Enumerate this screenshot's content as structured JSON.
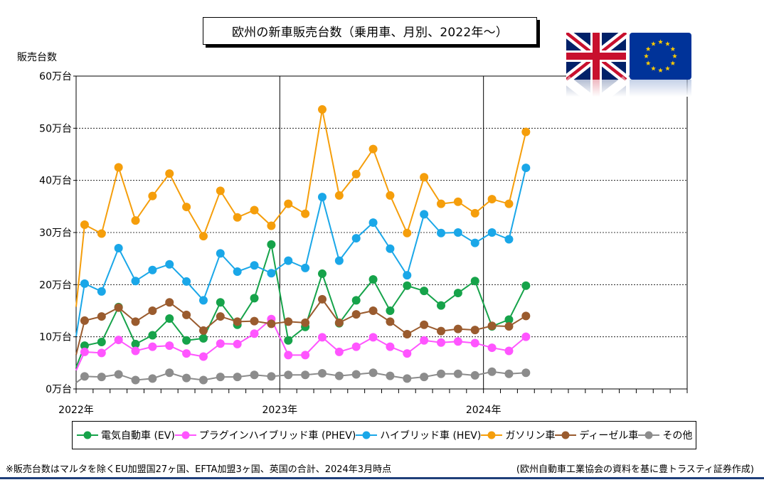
{
  "title": "欧州の新車販売台数（乗用車、月別、2022年～）",
  "ylabel": "販売台数",
  "footnote": "※販売台数はマルタを除くEU加盟国27ヶ国、EFTA加盟3ヶ国、英国の合計、2024年3月時点",
  "source": "(欧州自動車工業協会の資料を基に豊トラスティ証券作成)",
  "flags": [
    {
      "name": "uk-flag"
    },
    {
      "name": "eu-flag"
    }
  ],
  "chart_data": {
    "type": "line",
    "title": "欧州の新車販売台数（乗用車、月別、2022年～）",
    "ylabel": "販売台数",
    "xlabel": "",
    "ylim": [
      0,
      60
    ],
    "y_unit": "万台",
    "yticks": [
      "0万台",
      "10万台",
      "20万台",
      "30万台",
      "40万台",
      "50万台",
      "60万台"
    ],
    "xticks": [
      "2022年",
      "2023年",
      "2024年"
    ],
    "x": [
      "2022-01",
      "2022-02",
      "2022-03",
      "2022-04",
      "2022-05",
      "2022-06",
      "2022-07",
      "2022-08",
      "2022-09",
      "2022-10",
      "2022-11",
      "2022-12",
      "2023-01",
      "2023-02",
      "2023-03",
      "2023-04",
      "2023-05",
      "2023-06",
      "2023-07",
      "2023-08",
      "2023-09",
      "2023-10",
      "2023-11",
      "2023-12",
      "2024-01",
      "2024-02",
      "2024-03"
    ],
    "grid": true,
    "legend_position": "bottom",
    "series": [
      {
        "name": "電気自動車 (EV)",
        "color": "#16a34a",
        "values": [
          8.3,
          9.0,
          15.7,
          8.6,
          10.3,
          13.5,
          9.3,
          9.7,
          16.6,
          12.3,
          17.4,
          27.7,
          9.3,
          11.9,
          22.1,
          12.6,
          17.0,
          21.0,
          15.0,
          19.8,
          18.8,
          16.0,
          18.4,
          20.7,
          12.0,
          13.3,
          19.8
        ]
      },
      {
        "name": "プラグインハイブリッド車 (PHEV)",
        "color": "#ff55ff",
        "values": [
          7.1,
          6.9,
          9.4,
          7.3,
          8.1,
          8.3,
          6.8,
          6.2,
          8.7,
          8.6,
          10.6,
          13.4,
          6.5,
          6.5,
          9.9,
          7.1,
          8.1,
          9.9,
          8.1,
          6.8,
          9.3,
          8.9,
          9.1,
          8.8,
          7.9,
          7.3,
          10.0
        ]
      },
      {
        "name": "ハイブリッド車 (HEV)",
        "color": "#1aa7e8",
        "values": [
          20.2,
          18.7,
          27.0,
          20.7,
          22.8,
          23.9,
          20.6,
          17.0,
          26.0,
          22.5,
          23.7,
          22.2,
          24.6,
          23.2,
          36.8,
          24.6,
          28.9,
          31.9,
          26.9,
          21.8,
          33.5,
          29.9,
          30.0,
          28.0,
          30.0,
          28.7,
          42.4
        ]
      },
      {
        "name": "ガソリン車",
        "color": "#f59e0b",
        "values": [
          31.5,
          29.8,
          42.5,
          32.3,
          37.0,
          41.3,
          34.9,
          29.3,
          38.0,
          32.9,
          34.3,
          31.3,
          35.5,
          33.6,
          53.6,
          37.1,
          41.2,
          46.0,
          37.1,
          29.9,
          40.6,
          35.5,
          35.9,
          33.7,
          36.4,
          35.5,
          49.3
        ]
      },
      {
        "name": "ディーゼル車",
        "color": "#9a5b2e",
        "values": [
          13.1,
          13.9,
          15.6,
          12.9,
          15.0,
          16.6,
          14.2,
          11.2,
          13.9,
          12.9,
          13.0,
          12.5,
          12.9,
          12.7,
          17.2,
          12.7,
          14.3,
          15.0,
          12.9,
          10.5,
          12.3,
          11.1,
          11.5,
          11.3,
          12.1,
          12.0,
          14.0
        ]
      },
      {
        "name": "その他",
        "color": "#8c8c8c",
        "values": [
          2.4,
          2.3,
          2.8,
          1.7,
          2.0,
          3.1,
          2.1,
          1.7,
          2.3,
          2.3,
          2.7,
          2.4,
          2.7,
          2.7,
          3.0,
          2.5,
          2.8,
          3.1,
          2.5,
          2.0,
          2.3,
          2.9,
          2.9,
          2.6,
          3.3,
          2.9,
          3.1
        ]
      }
    ]
  }
}
